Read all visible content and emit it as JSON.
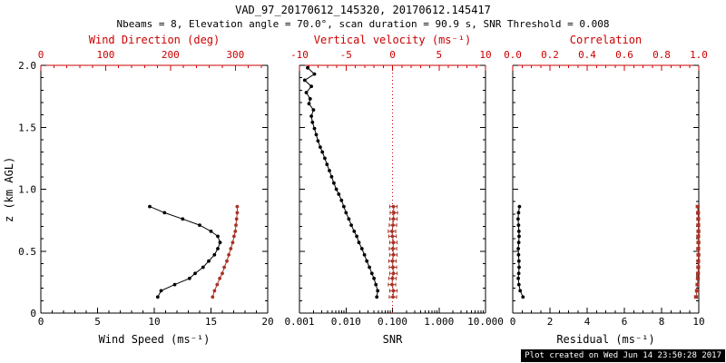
{
  "header": {
    "title": "VAD_97_20170612_145320, 20170612.145417",
    "subtitle": "Nbeams = 8, Elevation angle = 70.0°, scan duration = 90.9 s, SNR Threshold = 0.008"
  },
  "footer": {
    "created": "Plot created on Wed Jun 14 23:50:28 2017"
  },
  "colors": {
    "axis_red": "#cc0000",
    "series_red": "#a93226",
    "black": "#000000"
  },
  "chart_data": [
    {
      "type": "line",
      "name": "wind",
      "ylabel": "z (km AGL)",
      "xlabel": "Wind Speed (ms⁻¹)",
      "x2label": "Wind Direction (deg)",
      "left": {
        "lim": [
          0,
          2
        ],
        "tick_vals": [
          0,
          0.5,
          1,
          1.5,
          2
        ],
        "tick_labels": [
          "0",
          "0.5",
          "1.0",
          "1.5",
          "2.0"
        ],
        "minor": 0.1,
        "show_labels": true
      },
      "bottom": {
        "lim": [
          0,
          20
        ],
        "tick_vals": [
          0,
          5,
          10,
          15,
          20
        ],
        "tick_labels": [
          "0",
          "5",
          "10",
          "15",
          "20"
        ],
        "minor": 1
      },
      "top": {
        "lim": [
          0,
          350
        ],
        "tick_vals": [
          0,
          100,
          200,
          300
        ],
        "tick_labels": [
          "0",
          "100",
          "200",
          "300"
        ],
        "minor": 20
      },
      "series": [
        {
          "name": "wind-speed",
          "axis": "bottom",
          "color": "black",
          "z": [
            0.13,
            0.18,
            0.23,
            0.28,
            0.32,
            0.37,
            0.42,
            0.47,
            0.52,
            0.57,
            0.62,
            0.66,
            0.71,
            0.76,
            0.81,
            0.86
          ],
          "v": [
            10.3,
            10.6,
            11.8,
            13.1,
            13.6,
            14.3,
            14.8,
            15.3,
            15.6,
            15.8,
            15.6,
            15.0,
            14.0,
            12.5,
            10.9,
            9.6
          ]
        },
        {
          "name": "wind-direction",
          "axis": "top",
          "color": "red",
          "z": [
            0.13,
            0.18,
            0.23,
            0.28,
            0.32,
            0.37,
            0.42,
            0.47,
            0.52,
            0.57,
            0.62,
            0.66,
            0.71,
            0.76,
            0.81,
            0.86
          ],
          "v": [
            265,
            268,
            272,
            276,
            280,
            283,
            287,
            290,
            293,
            296,
            298,
            300,
            301,
            302,
            303,
            303
          ]
        }
      ]
    },
    {
      "type": "line",
      "name": "snr",
      "ylabel": "z (km AGL)",
      "xlabel": "SNR",
      "x2label": "Vertical velocity (ms⁻¹)",
      "left": {
        "lim": [
          0,
          2
        ],
        "tick_vals": [
          0,
          0.5,
          1,
          1.5,
          2
        ],
        "tick_labels": [
          "0",
          "0.5",
          "1.0",
          "1.5",
          "2.0"
        ],
        "minor": 0.1,
        "show_labels": false
      },
      "bottom": {
        "scale": "log",
        "lim": [
          0.001,
          10
        ],
        "tick_vals": [
          0.001,
          0.01,
          0.1,
          1,
          10
        ],
        "tick_labels": [
          "0.001",
          "0.010",
          "0.100",
          "1.000",
          "10.000"
        ]
      },
      "top": {
        "lim": [
          -10,
          10
        ],
        "tick_vals": [
          -10,
          -5,
          0,
          5,
          10
        ],
        "tick_labels": [
          "-10",
          "-5",
          "0",
          "5",
          "10"
        ],
        "minor": 1
      },
      "vline": {
        "axis": "top",
        "value": 0,
        "color": "red",
        "style": "dotted"
      },
      "series": [
        {
          "name": "snr-profile",
          "axis": "bottom",
          "color": "black",
          "z": [
            0.13,
            0.18,
            0.23,
            0.28,
            0.32,
            0.37,
            0.42,
            0.47,
            0.52,
            0.57,
            0.62,
            0.66,
            0.71,
            0.76,
            0.81,
            0.86,
            0.91,
            0.96,
            1.0,
            1.05,
            1.1,
            1.15,
            1.2,
            1.25,
            1.3,
            1.34,
            1.39,
            1.44,
            1.49,
            1.54,
            1.59,
            1.64,
            1.69,
            1.73,
            1.78,
            1.83,
            1.88,
            1.93,
            1.98
          ],
          "v": [
            0.046,
            0.048,
            0.044,
            0.04,
            0.036,
            0.032,
            0.028,
            0.025,
            0.022,
            0.019,
            0.017,
            0.015,
            0.013,
            0.0115,
            0.01,
            0.009,
            0.008,
            0.007,
            0.0062,
            0.0055,
            0.0049,
            0.0044,
            0.0039,
            0.0035,
            0.0031,
            0.0028,
            0.0025,
            0.0023,
            0.0021,
            0.0019,
            0.0018,
            0.002,
            0.0016,
            0.0017,
            0.0014,
            0.0018,
            0.0013,
            0.0021,
            0.0015
          ]
        },
        {
          "name": "vertical-velocity",
          "axis": "top",
          "color": "red",
          "xerr": 0.4,
          "z": [
            0.13,
            0.18,
            0.23,
            0.28,
            0.32,
            0.37,
            0.42,
            0.47,
            0.52,
            0.57,
            0.62,
            0.66,
            0.71,
            0.76,
            0.81,
            0.86
          ],
          "v": [
            0.05,
            0.1,
            -0.05,
            0.0,
            0.1,
            0.05,
            0.0,
            0.1,
            0.05,
            0.1,
            0.0,
            -0.05,
            0.05,
            0.1,
            0.15,
            0.1
          ]
        }
      ]
    },
    {
      "type": "line",
      "name": "residual",
      "ylabel": "z (km AGL)",
      "xlabel": "Residual (ms⁻¹)",
      "x2label": "Correlation",
      "left": {
        "lim": [
          0,
          2
        ],
        "tick_vals": [
          0,
          0.5,
          1,
          1.5,
          2
        ],
        "tick_labels": [
          "0",
          "0.5",
          "1.0",
          "1.5",
          "2.0"
        ],
        "minor": 0.1,
        "show_labels": false
      },
      "bottom": {
        "lim": [
          0,
          10
        ],
        "tick_vals": [
          0,
          2,
          4,
          6,
          8,
          10
        ],
        "tick_labels": [
          "0",
          "2",
          "4",
          "6",
          "8",
          "10"
        ],
        "minor": 0.5
      },
      "top": {
        "lim": [
          0,
          1
        ],
        "tick_vals": [
          0,
          0.2,
          0.4,
          0.6,
          0.8,
          1
        ],
        "tick_labels": [
          "0.0",
          "0.2",
          "0.4",
          "0.6",
          "0.8",
          "1.0"
        ],
        "minor": 0.05
      },
      "series": [
        {
          "name": "residual-profile",
          "axis": "bottom",
          "color": "black",
          "z": [
            0.13,
            0.18,
            0.23,
            0.28,
            0.32,
            0.37,
            0.42,
            0.47,
            0.52,
            0.57,
            0.62,
            0.66,
            0.71,
            0.76,
            0.81,
            0.86
          ],
          "v": [
            0.55,
            0.4,
            0.33,
            0.3,
            0.32,
            0.34,
            0.33,
            0.31,
            0.3,
            0.32,
            0.34,
            0.33,
            0.31,
            0.29,
            0.31,
            0.36
          ]
        },
        {
          "name": "correlation",
          "axis": "top",
          "color": "red",
          "xerr": 0.008,
          "z": [
            0.13,
            0.18,
            0.23,
            0.28,
            0.32,
            0.37,
            0.42,
            0.47,
            0.52,
            0.57,
            0.62,
            0.66,
            0.71,
            0.76,
            0.81,
            0.86
          ],
          "v": [
            0.985,
            0.99,
            0.993,
            0.995,
            0.996,
            0.997,
            0.997,
            0.998,
            0.997,
            0.998,
            0.997,
            0.998,
            0.997,
            0.997,
            0.996,
            0.994
          ]
        }
      ]
    }
  ]
}
